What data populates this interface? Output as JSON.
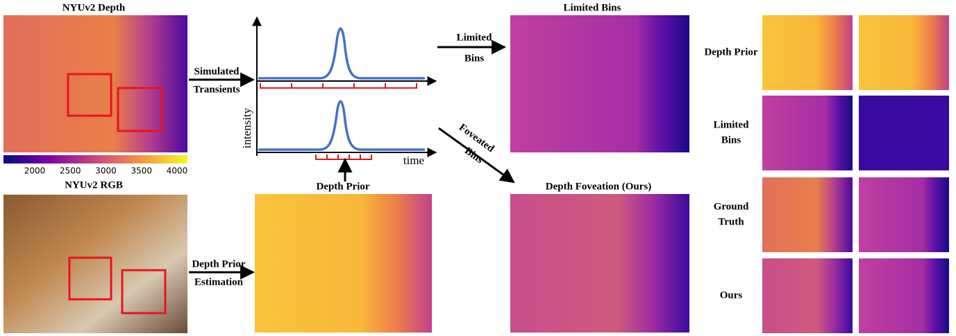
{
  "left": {
    "depth_title": "NYUv2 Depth",
    "colorbar_ticks": [
      2000,
      2500,
      3000,
      3500,
      4000
    ],
    "rgb_title": "NYUv2 RGB"
  },
  "arrows": {
    "simulated_transients": [
      "Simulated",
      "Transients"
    ],
    "depth_prior_estimation": [
      "Depth Prior",
      "Estimation"
    ],
    "limited_bins": [
      "Limited",
      "Bins"
    ],
    "foveated_bins": [
      "Foveated",
      "Bins"
    ]
  },
  "plot": {
    "y_label": "intensity",
    "x_label": "time"
  },
  "middle": {
    "depth_prior_title": "Depth Prior"
  },
  "results": {
    "limited_bins_title": "Limited Bins",
    "foveation_title": "Depth Foveation (Ours)"
  },
  "rows": [
    [
      "Depth Prior"
    ],
    [
      "Limited",
      "Bins"
    ],
    [
      "Ground",
      "Truth"
    ],
    [
      "Ours"
    ]
  ]
}
